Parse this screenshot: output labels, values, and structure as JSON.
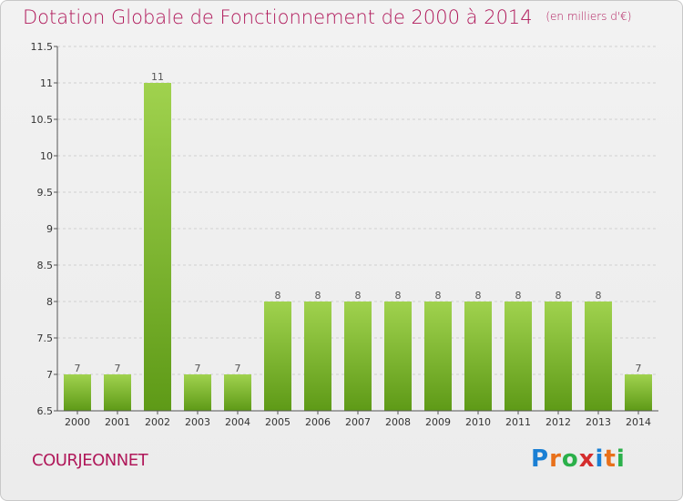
{
  "header": {
    "title": "Dotation Globale de Fonctionnement de 2000 à 2014",
    "subtitle": "(en milliers d'€)"
  },
  "footer": {
    "commune": "COURJEONNET",
    "logo": "Proxiti",
    "logo_colors": [
      "#1a7fd4",
      "#e8701a",
      "#2bb04a",
      "#d42d2d",
      "#1a7fd4",
      "#e8701a",
      "#2bb04a"
    ]
  },
  "colors": {
    "title": "#b0185a",
    "bar_top": "#a0d24e",
    "bar_bottom": "#5e9a17",
    "grid": "#d0d0d0",
    "axis": "#555555",
    "tick_label": "#333333",
    "value_label": "#555555"
  },
  "chart_data": {
    "type": "bar",
    "categories": [
      "2000",
      "2001",
      "2002",
      "2003",
      "2004",
      "2005",
      "2006",
      "2007",
      "2008",
      "2009",
      "2010",
      "2011",
      "2012",
      "2013",
      "2014"
    ],
    "values": [
      7,
      7,
      11,
      7,
      7,
      8,
      8,
      8,
      8,
      8,
      8,
      8,
      8,
      8,
      7
    ],
    "ylim": [
      6.5,
      11.5
    ],
    "yticks": [
      "6.5",
      "7",
      "7.5",
      "8",
      "8.5",
      "9",
      "9.5",
      "10",
      "10.5",
      "11",
      "11.5"
    ],
    "grid": "horizontal dashed",
    "legend": "none"
  }
}
